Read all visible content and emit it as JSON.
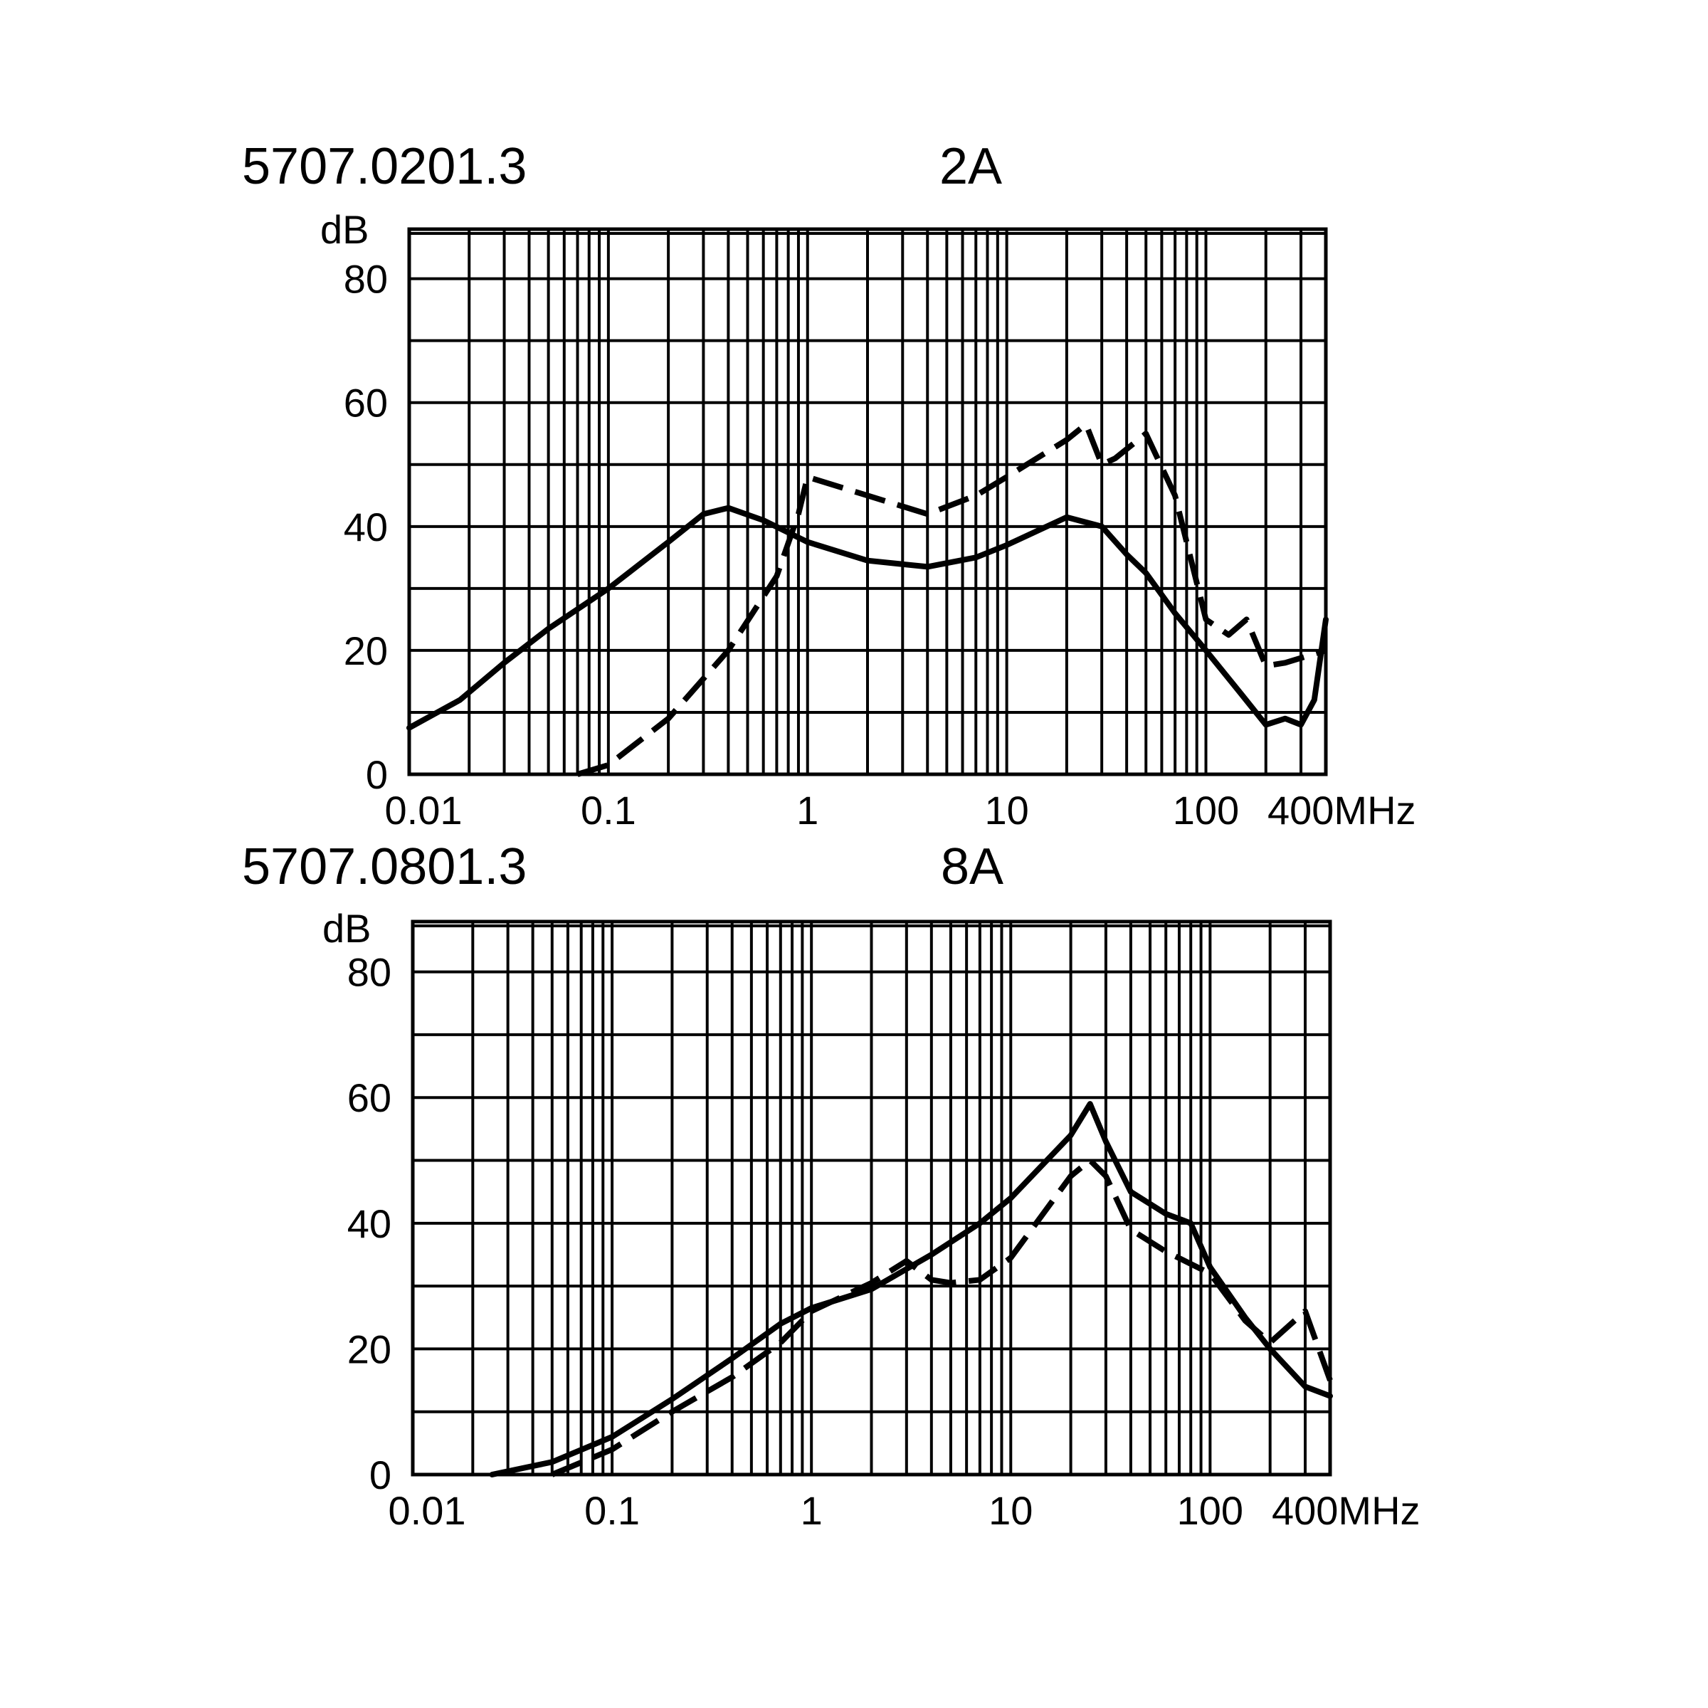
{
  "chart_data": [
    {
      "type": "line",
      "title": "5707.0201.3",
      "subtitle": "2A",
      "ylabel": "dB",
      "xlabel": "",
      "x_scale": "log",
      "xlim": [
        0.01,
        400
      ],
      "ylim": [
        0,
        88
      ],
      "x_ticks": [
        {
          "value": 0.01,
          "label": "0.01"
        },
        {
          "value": 0.1,
          "label": "0.1"
        },
        {
          "value": 1,
          "label": "1"
        },
        {
          "value": 10,
          "label": "10"
        },
        {
          "value": 100,
          "label": "100"
        },
        {
          "value": 400,
          "label": "400MHz"
        }
      ],
      "y_ticks": [
        {
          "value": 0,
          "label": "0"
        },
        {
          "value": 20,
          "label": "20"
        },
        {
          "value": 40,
          "label": "40"
        },
        {
          "value": 60,
          "label": "60"
        },
        {
          "value": 80,
          "label": "80"
        }
      ],
      "grid": true,
      "series": [
        {
          "style": "solid",
          "x": [
            0.01,
            0.018,
            0.03,
            0.05,
            0.1,
            0.2,
            0.3,
            0.4,
            0.6,
            1,
            2,
            4,
            7,
            10,
            20,
            30,
            40,
            50,
            70,
            100,
            150,
            200,
            250,
            300,
            350,
            400
          ],
          "y": [
            7.5,
            12,
            18,
            23.5,
            30,
            37.5,
            42,
            43,
            41,
            37.5,
            34.5,
            33.5,
            35,
            37,
            41.5,
            40,
            35.5,
            32.5,
            26,
            20,
            13,
            8,
            9,
            8,
            12,
            25
          ]
        },
        {
          "style": "dashed",
          "x": [
            0.07,
            0.1,
            0.2,
            0.4,
            0.7,
            0.9,
            1,
            2,
            4,
            7,
            10,
            20,
            25,
            30,
            35,
            50,
            70,
            100,
            130,
            160,
            200,
            250,
            400
          ],
          "y": [
            0,
            1.5,
            9,
            20,
            32,
            42,
            48,
            45,
            42,
            45,
            48,
            54,
            56.5,
            50,
            51,
            55,
            45,
            25,
            22.5,
            25,
            17.5,
            18,
            20
          ]
        }
      ]
    },
    {
      "type": "line",
      "title": "5707.0801.3",
      "subtitle": "8A",
      "ylabel": "dB",
      "xlabel": "",
      "x_scale": "log",
      "xlim": [
        0.01,
        400
      ],
      "ylim": [
        0,
        88
      ],
      "x_ticks": [
        {
          "value": 0.01,
          "label": "0.01"
        },
        {
          "value": 0.1,
          "label": "0.1"
        },
        {
          "value": 1,
          "label": "1"
        },
        {
          "value": 10,
          "label": "10"
        },
        {
          "value": 100,
          "label": "100"
        },
        {
          "value": 400,
          "label": "400MHz"
        }
      ],
      "y_ticks": [
        {
          "value": 0,
          "label": "0"
        },
        {
          "value": 20,
          "label": "20"
        },
        {
          "value": 40,
          "label": "40"
        },
        {
          "value": 60,
          "label": "60"
        },
        {
          "value": 80,
          "label": "80"
        }
      ],
      "grid": true,
      "series": [
        {
          "style": "solid",
          "x": [
            0.025,
            0.05,
            0.1,
            0.2,
            0.4,
            0.7,
            1,
            2,
            4,
            7,
            10,
            20,
            25,
            30,
            40,
            60,
            80,
            100,
            150,
            200,
            300,
            400
          ],
          "y": [
            0,
            2,
            6,
            12,
            18.5,
            24,
            26.5,
            29.5,
            35,
            40,
            44,
            54,
            59,
            53,
            45,
            41.5,
            40,
            33,
            25,
            20,
            14,
            12.5
          ]
        },
        {
          "style": "dashed",
          "x": [
            0.05,
            0.1,
            0.2,
            0.4,
            0.7,
            1,
            2,
            3,
            4,
            5,
            7,
            10,
            20,
            25,
            30,
            40,
            60,
            100,
            150,
            200,
            300,
            400
          ],
          "y": [
            0,
            4,
            10,
            15.5,
            21,
            26,
            30.5,
            34,
            31,
            30.5,
            31,
            34.5,
            47.5,
            50,
            47.5,
            39,
            35.5,
            32,
            24.5,
            21,
            26,
            15
          ]
        }
      ]
    }
  ]
}
